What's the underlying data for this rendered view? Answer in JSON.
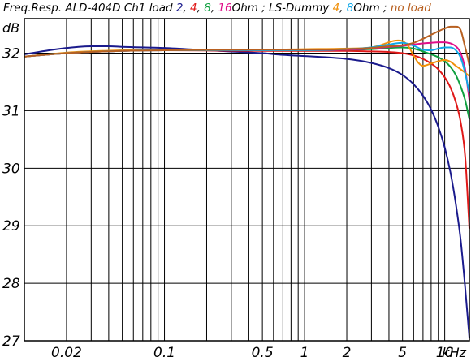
{
  "chart_data": {
    "type": "line",
    "title_parts": [
      {
        "text": "Freq.Resp. ALD-404D Ch1 load ",
        "color": "#000000"
      },
      {
        "text": "2",
        "color": "#1a1a8c"
      },
      {
        "text": ", ",
        "color": "#000000"
      },
      {
        "text": "4",
        "color": "#e01818"
      },
      {
        "text": ", ",
        "color": "#000000"
      },
      {
        "text": "8",
        "color": "#10a040"
      },
      {
        "text": ", ",
        "color": "#000000"
      },
      {
        "text": "16",
        "color": "#e0108a"
      },
      {
        "text": "Ohm ; LS-Dummy ",
        "color": "#000000"
      },
      {
        "text": "4",
        "color": "#f0900a"
      },
      {
        "text": ", ",
        "color": "#000000"
      },
      {
        "text": "8",
        "color": "#10a8e8"
      },
      {
        "text": "Ohm ; ",
        "color": "#000000"
      },
      {
        "text": "no load",
        "color": "#b86020"
      }
    ],
    "ylabel": "dB",
    "xunit": "kHz",
    "x_scale": "log",
    "xlim": [
      0.01,
      15
    ],
    "ylim": [
      27,
      32.6
    ],
    "y_ticks": [
      27,
      28,
      29,
      30,
      31,
      32
    ],
    "x_tick_labels": [
      {
        "value": 0.02,
        "label": "0.02"
      },
      {
        "value": 0.1,
        "label": "0.1"
      },
      {
        "value": 0.5,
        "label": "0.5"
      },
      {
        "value": 1,
        "label": "1"
      },
      {
        "value": 2,
        "label": "2"
      },
      {
        "value": 5,
        "label": "5"
      },
      {
        "value": 10,
        "label": "10"
      }
    ],
    "x_grid": [
      0.02,
      0.03,
      0.04,
      0.05,
      0.06,
      0.07,
      0.08,
      0.09,
      0.1,
      0.2,
      0.3,
      0.4,
      0.5,
      0.6,
      0.7,
      0.8,
      0.9,
      1,
      2,
      3,
      4,
      5,
      6,
      7,
      8,
      9,
      10
    ],
    "grid": true,
    "series": [
      {
        "name": "2 Ohm",
        "color": "#1a1a8c",
        "x": [
          0.01,
          0.015,
          0.02,
          0.03,
          0.04,
          0.05,
          0.1,
          0.2,
          0.5,
          0.7,
          1,
          2,
          3,
          4,
          5,
          6,
          7,
          8,
          9,
          10,
          11,
          12,
          13,
          14,
          15
        ],
        "y": [
          31.98,
          32.05,
          32.09,
          32.12,
          32.12,
          32.11,
          32.09,
          32.05,
          32.0,
          31.97,
          31.95,
          31.9,
          31.83,
          31.74,
          31.62,
          31.46,
          31.26,
          31.02,
          30.72,
          30.36,
          29.92,
          29.38,
          28.75,
          27.92,
          27.05
        ]
      },
      {
        "name": "4 Ohm",
        "color": "#e01818",
        "x": [
          0.01,
          0.02,
          0.05,
          0.1,
          0.5,
          1,
          2,
          3,
          4,
          5,
          6,
          7,
          8,
          9,
          10,
          11,
          12,
          13,
          14,
          15
        ],
        "y": [
          31.94,
          32.0,
          32.04,
          32.05,
          32.04,
          32.04,
          32.04,
          32.03,
          32.02,
          32.0,
          31.96,
          31.9,
          31.82,
          31.72,
          31.58,
          31.4,
          31.15,
          30.8,
          30.2,
          28.95
        ]
      },
      {
        "name": "8 Ohm",
        "color": "#10a040",
        "x": [
          0.01,
          0.02,
          0.05,
          0.1,
          0.5,
          1,
          2,
          3,
          4,
          5,
          6,
          7,
          8,
          9,
          10,
          11,
          12,
          13,
          14,
          15
        ],
        "y": [
          31.94,
          32.0,
          32.04,
          32.05,
          32.05,
          32.05,
          32.06,
          32.07,
          32.09,
          32.1,
          32.08,
          32.03,
          31.98,
          31.93,
          31.86,
          31.76,
          31.62,
          31.42,
          31.18,
          30.85
        ]
      },
      {
        "name": "16 Ohm",
        "color": "#e0108a",
        "x": [
          0.01,
          0.02,
          0.05,
          0.1,
          0.5,
          1,
          2,
          3,
          4,
          5,
          6,
          7,
          8,
          9,
          10,
          11,
          12,
          13,
          14,
          15
        ],
        "y": [
          31.94,
          32.0,
          32.04,
          32.05,
          32.05,
          32.05,
          32.06,
          32.08,
          32.11,
          32.13,
          32.15,
          32.17,
          32.18,
          32.19,
          32.19,
          32.17,
          32.12,
          32.0,
          31.72,
          31.18
        ]
      },
      {
        "name": "LS-Dummy 4 Ohm",
        "color": "#f0900a",
        "x": [
          0.01,
          0.02,
          0.05,
          0.1,
          0.5,
          1,
          2,
          3,
          3.5,
          4,
          4.5,
          5,
          5.5,
          6,
          6.5,
          7,
          8,
          9,
          10,
          11,
          12,
          13,
          14,
          15
        ],
        "y": [
          31.94,
          32.01,
          32.05,
          32.06,
          32.06,
          32.07,
          32.08,
          32.1,
          32.14,
          32.19,
          32.22,
          32.21,
          32.12,
          31.96,
          31.83,
          31.78,
          31.82,
          31.86,
          31.88,
          31.85,
          31.78,
          31.72,
          31.66,
          31.6
        ]
      },
      {
        "name": "LS-Dummy 8 Ohm",
        "color": "#10a8e8",
        "x": [
          0.01,
          0.02,
          0.05,
          0.1,
          0.5,
          1,
          2,
          3,
          4,
          5,
          6,
          7,
          8,
          9,
          10,
          11,
          12,
          13,
          14,
          15
        ],
        "y": [
          31.94,
          32.0,
          32.04,
          32.05,
          32.05,
          32.05,
          32.07,
          32.1,
          32.15,
          32.18,
          32.13,
          32.06,
          32.05,
          32.08,
          32.1,
          32.1,
          32.05,
          31.92,
          31.65,
          31.3
        ]
      },
      {
        "name": "no load",
        "color": "#b86020",
        "x": [
          0.01,
          0.02,
          0.05,
          0.1,
          0.5,
          1,
          2,
          3,
          4,
          5,
          6,
          7,
          8,
          9,
          10,
          11,
          12,
          13,
          14,
          14.5,
          15
        ],
        "y": [
          31.94,
          32.0,
          32.04,
          32.05,
          32.06,
          32.06,
          32.07,
          32.09,
          32.12,
          32.14,
          32.18,
          32.25,
          32.32,
          32.38,
          32.43,
          32.46,
          32.46,
          32.4,
          32.1,
          31.95,
          31.78
        ]
      }
    ]
  }
}
